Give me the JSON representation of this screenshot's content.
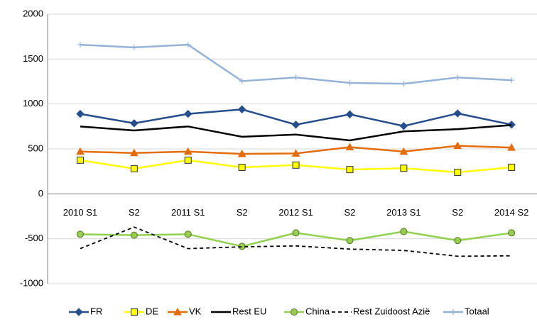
{
  "chart_data": {
    "type": "line",
    "categories": [
      "2010 S1",
      "S2",
      "2011 S1",
      "S2",
      "2012 S1",
      "S2",
      "2013 S1",
      "S2",
      "2014 S2"
    ],
    "series": [
      {
        "name": "FR",
        "color": "#264d8c",
        "marker": "diamond",
        "values": [
          890,
          785,
          890,
          940,
          770,
          885,
          755,
          895,
          770
        ]
      },
      {
        "name": "DE",
        "color": "#ffff00",
        "marker": "square",
        "values": [
          375,
          280,
          375,
          295,
          320,
          270,
          285,
          240,
          295
        ]
      },
      {
        "name": "VK",
        "color": "#e36c0a",
        "marker": "triangle",
        "values": [
          470,
          455,
          470,
          445,
          450,
          520,
          470,
          535,
          515
        ]
      },
      {
        "name": "Rest EU",
        "color": "#000000",
        "marker": "none",
        "values": [
          750,
          705,
          750,
          635,
          660,
          595,
          695,
          720,
          765
        ]
      },
      {
        "name": "China",
        "color": "#92d050",
        "marker": "circle",
        "values": [
          -450,
          -460,
          -450,
          -585,
          -435,
          -520,
          -420,
          -520,
          -435
        ]
      },
      {
        "name": "Rest Zuidoost Azië",
        "color": "#000000",
        "marker": "none",
        "dash": "5,4",
        "values": [
          -610,
          -370,
          -610,
          -590,
          -580,
          -615,
          -630,
          -695,
          -690
        ]
      },
      {
        "name": "Totaal",
        "color": "#95b3d7",
        "marker": "plus",
        "values": [
          1660,
          1630,
          1660,
          1255,
          1295,
          1235,
          1225,
          1295,
          1265
        ]
      }
    ],
    "ylim": [
      -1000,
      2000
    ],
    "yticks": [
      -1000,
      -500,
      0,
      500,
      1000,
      1500,
      2000
    ],
    "grid": true
  }
}
